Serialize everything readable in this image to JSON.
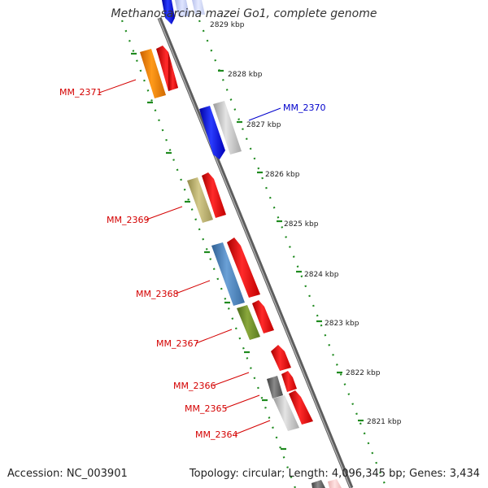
{
  "title": "Methanosarcina mazei Go1, complete genome",
  "footer": {
    "accession": "Accession: NC_003901",
    "topology": "Topology: circular; Length: 4,096,345 bp; Genes: 3,434"
  },
  "ticks": [
    "2829 kbp",
    "2828 kbp",
    "2827 kbp",
    "2826 kbp",
    "2825 kbp",
    "2824 kbp",
    "2823 kbp",
    "2822 kbp",
    "2821 kbp"
  ],
  "genes": {
    "mm2371": "MM_2371",
    "mm2370": "MM_2370",
    "mm2369": "MM_2369",
    "mm2368": "MM_2368",
    "mm2367": "MM_2367",
    "mm2366": "MM_2366",
    "mm2365": "MM_2365",
    "mm2364": "MM_2364"
  },
  "colors": {
    "label_red": "#d40000",
    "label_blue": "#0000cc",
    "track_green": "#1f8a1f",
    "backbone": "#777777"
  }
}
